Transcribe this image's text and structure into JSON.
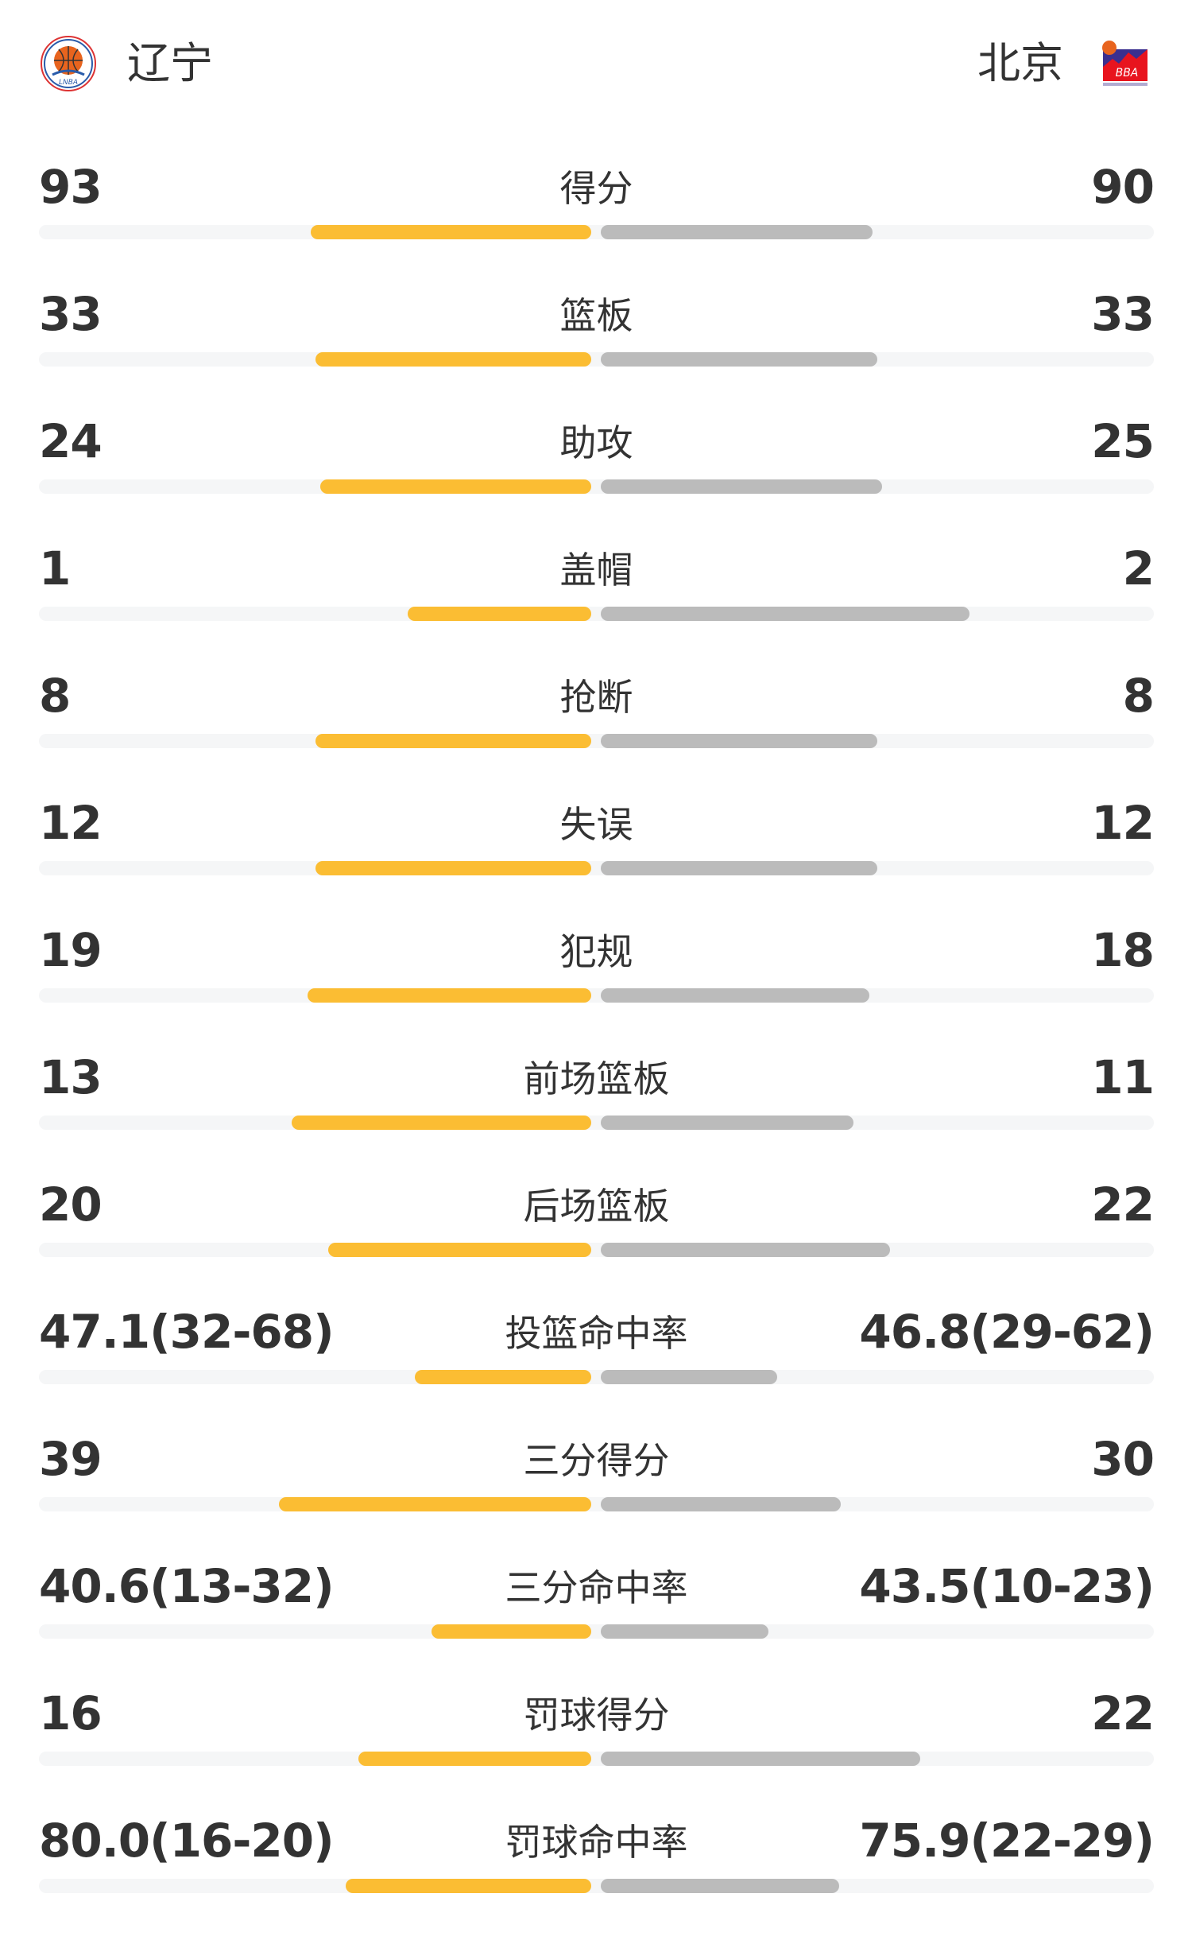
{
  "home": {
    "name": "辽宁",
    "logo_icon": "liaoning-basketball-logo"
  },
  "away": {
    "name": "北京",
    "logo_icon": "beijing-basketball-logo"
  },
  "colors": {
    "home_bar": "#fbbd33",
    "away_bar": "#bbbbbb",
    "track": "#f5f6f7"
  },
  "stats": [
    {
      "label": "得分",
      "home": "93",
      "away": "90",
      "home_fill": 0.508,
      "away_fill": 0.492
    },
    {
      "label": "篮板",
      "home": "33",
      "away": "33",
      "home_fill": 0.5,
      "away_fill": 0.5
    },
    {
      "label": "助攻",
      "home": "24",
      "away": "25",
      "home_fill": 0.49,
      "away_fill": 0.51
    },
    {
      "label": "盖帽",
      "home": "1",
      "away": "2",
      "home_fill": 0.333,
      "away_fill": 0.667
    },
    {
      "label": "抢断",
      "home": "8",
      "away": "8",
      "home_fill": 0.5,
      "away_fill": 0.5
    },
    {
      "label": "失误",
      "home": "12",
      "away": "12",
      "home_fill": 0.5,
      "away_fill": 0.5
    },
    {
      "label": "犯规",
      "home": "19",
      "away": "18",
      "home_fill": 0.514,
      "away_fill": 0.486
    },
    {
      "label": "前场篮板",
      "home": "13",
      "away": "11",
      "home_fill": 0.542,
      "away_fill": 0.458
    },
    {
      "label": "后场篮板",
      "home": "20",
      "away": "22",
      "home_fill": 0.476,
      "away_fill": 0.524
    },
    {
      "label": "投篮命中率",
      "home": "47.1(32-68)",
      "away": "46.8(29-62)",
      "home_fill": 0.32,
      "away_fill": 0.319
    },
    {
      "label": "三分得分",
      "home": "39",
      "away": "30",
      "home_fill": 0.565,
      "away_fill": 0.435
    },
    {
      "label": "三分命中率",
      "home": "40.6(13-32)",
      "away": "43.5(10-23)",
      "home_fill": 0.289,
      "away_fill": 0.303
    },
    {
      "label": "罚球得分",
      "home": "16",
      "away": "22",
      "home_fill": 0.421,
      "away_fill": 0.579
    },
    {
      "label": "罚球命中率",
      "home": "80.0(16-20)",
      "away": "75.9(22-29)",
      "home_fill": 0.444,
      "away_fill": 0.431
    }
  ]
}
